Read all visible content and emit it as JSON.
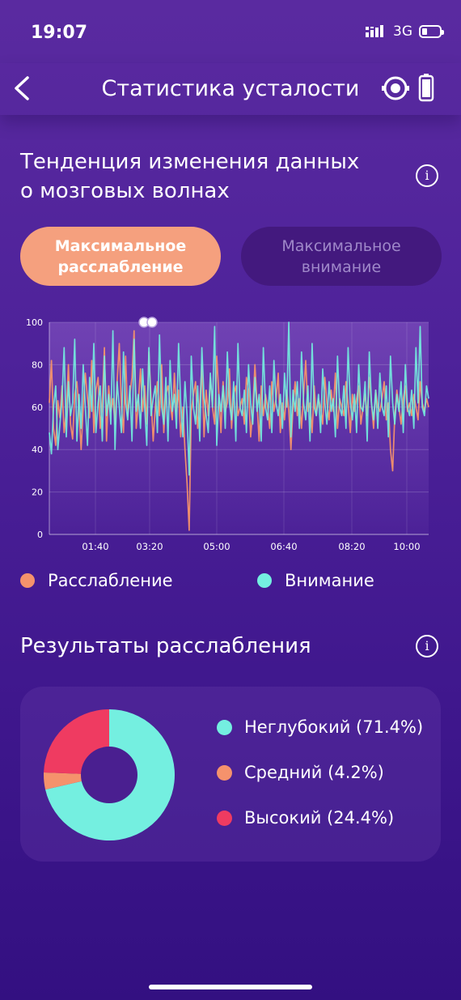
{
  "status": {
    "time": "19:07",
    "network": "3G"
  },
  "header": {
    "title": "Статистика усталости"
  },
  "trend": {
    "title_line1": "Тенденция изменения данных",
    "title_line2": "о мозговых волнах",
    "info": "i",
    "tabs": [
      {
        "label_line1": "Максимальное",
        "label_line2": "расслабление",
        "active": true
      },
      {
        "label_line1": "Максимальное",
        "label_line2": "внимание",
        "active": false
      }
    ]
  },
  "chart_data": {
    "type": "line",
    "yticks": [
      "0",
      "20",
      "40",
      "60",
      "80",
      "100"
    ],
    "ylim": [
      0,
      100
    ],
    "xticks": [
      "01:40",
      "03:20",
      "05:00",
      "06:40",
      "08:20",
      "10:00"
    ],
    "grid": true,
    "legend_position": "bottom",
    "series": [
      {
        "name": "Расслабление",
        "color": "#f5926c",
        "values": [
          62,
          82,
          50,
          42,
          63,
          55,
          70,
          48,
          58,
          80,
          52,
          45,
          66,
          72,
          58,
          40,
          60,
          76,
          64,
          55,
          82,
          48,
          68,
          74,
          50,
          62,
          88,
          44,
          70,
          58,
          64,
          52,
          72,
          90,
          60,
          48,
          84,
          56,
          66,
          74,
          96,
          50,
          62,
          78,
          58,
          70,
          52,
          86,
          64,
          44,
          60,
          72,
          56,
          80,
          48,
          66,
          70,
          62,
          54,
          76,
          58,
          68,
          46,
          60,
          40,
          24,
          2,
          58,
          66,
          72,
          50,
          62,
          80,
          46,
          68,
          56,
          74,
          60,
          52,
          84,
          66,
          48,
          72,
          58,
          62,
          78,
          50,
          66,
          70,
          56,
          60,
          64,
          52,
          74,
          68,
          46,
          58,
          80,
          62,
          44,
          70,
          56,
          66,
          60,
          50,
          72,
          58,
          64,
          76,
          48,
          62,
          54,
          68,
          58,
          40,
          60,
          72,
          56,
          64,
          50,
          66,
          82,
          58,
          62,
          48,
          70,
          56,
          64,
          60,
          52,
          74,
          62,
          54,
          68,
          58,
          76,
          50,
          64,
          60,
          56,
          72,
          62,
          48,
          66,
          58,
          64,
          70,
          52,
          60,
          66,
          56,
          74,
          62,
          50,
          68,
          60,
          58,
          64,
          72,
          54,
          62,
          40,
          30,
          56,
          68,
          60,
          52,
          64,
          70,
          58,
          62,
          56,
          66,
          60,
          54,
          72,
          62,
          58,
          64,
          60
        ]
      },
      {
        "name": "Внимание",
        "color": "#74efe0",
        "values": [
          48,
          38,
          60,
          70,
          40,
          52,
          64,
          88,
          46,
          72,
          56,
          62,
          92,
          44,
          66,
          50,
          80,
          60,
          42,
          74,
          58,
          90,
          48,
          62,
          70,
          44,
          84,
          56,
          66,
          52,
          96,
          40,
          72,
          60,
          48,
          86,
          62,
          54,
          70,
          44,
          92,
          58,
          66,
          50,
          78,
          60,
          42,
          88,
          56,
          64,
          70,
          48,
          94,
          60,
          52,
          74,
          44,
          82,
          58,
          66,
          50,
          90,
          62,
          46,
          72,
          56,
          28,
          84,
          60,
          52,
          70,
          44,
          88,
          64,
          56,
          48,
          76,
          60,
          98,
          42,
          66,
          58,
          70,
          50,
          86,
          62,
          54,
          72,
          44,
          90,
          60,
          56,
          68,
          48,
          80,
          62,
          52,
          74,
          58,
          66,
          44,
          88,
          60,
          54,
          70,
          48,
          82,
          62,
          56,
          66,
          50,
          76,
          60,
          100,
          46,
          68,
          58,
          72,
          50,
          86,
          62,
          54,
          70,
          44,
          90,
          60,
          56,
          66,
          48,
          78,
          62,
          52,
          72,
          58,
          64,
          46,
          84,
          60,
          56,
          70,
          50,
          88,
          62,
          54,
          66,
          48,
          80,
          60,
          58,
          72,
          44,
          86,
          62,
          54,
          68,
          50,
          76,
          60,
          56,
          70,
          46,
          84,
          62,
          52,
          66,
          58,
          72,
          48,
          80,
          60,
          56,
          68,
          50,
          88,
          62,
          98,
          60,
          56,
          70,
          64
        ]
      }
    ]
  },
  "legend": {
    "relax": "Расслабление",
    "attention": "Внимание"
  },
  "results": {
    "title": "Результаты расслабления",
    "info": "i",
    "pie": [
      {
        "label": "Неглубокий (71.4%)",
        "value": 71.4,
        "color": "#74efe0"
      },
      {
        "label": "Средний (4.2%)",
        "value": 4.2,
        "color": "#f5926c"
      },
      {
        "label": "Высокий (24.4%)",
        "value": 24.4,
        "color": "#ef3b61"
      }
    ]
  },
  "colors": {
    "accent": "#f5a07e",
    "bg_top": "#5a2aa0",
    "bg_bottom": "#331081"
  }
}
